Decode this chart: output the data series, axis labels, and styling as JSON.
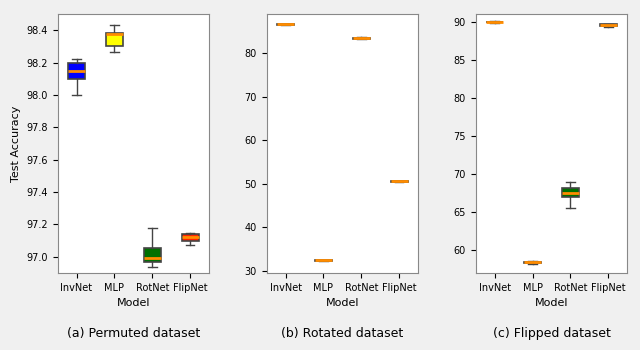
{
  "title_a": "(a) Permuted dataset",
  "title_b": "(b) Rotated dataset",
  "title_c": "(c) Flipped dataset",
  "xlabel": "Model",
  "ylabel": "Test Accuracy",
  "models": [
    "InvNet",
    "MLP",
    "RotNet",
    "FlipNet"
  ],
  "colors": [
    "#0000ff",
    "#ffff00",
    "#007000",
    "#ff2200"
  ],
  "edge_colors": [
    "#cc6600",
    "#555555",
    "#555555",
    "#cc6600"
  ],
  "permuted": {
    "InvNet": {
      "q1": 98.1,
      "median": 98.15,
      "q3": 98.2,
      "whislo": 98.0,
      "whishi": 98.22
    },
    "MLP": {
      "q1": 98.3,
      "median": 98.375,
      "q3": 98.385,
      "whislo": 98.265,
      "whishi": 98.43
    },
    "RotNet": {
      "q1": 96.97,
      "median": 96.99,
      "q3": 97.055,
      "whislo": 96.94,
      "whishi": 97.18
    },
    "FlipNet": {
      "q1": 97.1,
      "median": 97.12,
      "q3": 97.14,
      "whislo": 97.07,
      "whishi": 97.15
    }
  },
  "rotated": {
    "InvNet": {
      "q1": 86.5,
      "median": 86.6,
      "q3": 86.65,
      "whislo": 86.42,
      "whishi": 86.68
    },
    "MLP": {
      "q1": 32.3,
      "median": 32.38,
      "q3": 32.45,
      "whislo": 32.15,
      "whishi": 32.55
    },
    "RotNet": {
      "q1": 83.3,
      "median": 83.5,
      "q3": 83.6,
      "whislo": 83.15,
      "whishi": 83.75
    },
    "FlipNet": {
      "q1": 50.5,
      "median": 50.58,
      "q3": 50.62,
      "whislo": 50.45,
      "whishi": 50.65
    }
  },
  "flipped": {
    "InvNet": {
      "q1": 89.92,
      "median": 89.97,
      "q3": 90.01,
      "whislo": 89.88,
      "whishi": 90.05
    },
    "MLP": {
      "q1": 58.28,
      "median": 58.38,
      "q3": 58.46,
      "whislo": 58.18,
      "whishi": 58.55
    },
    "RotNet": {
      "q1": 67.0,
      "median": 67.5,
      "q3": 68.2,
      "whislo": 65.5,
      "whishi": 69.0
    },
    "FlipNet": {
      "q1": 89.42,
      "median": 89.55,
      "q3": 89.63,
      "whislo": 89.32,
      "whishi": 89.7
    }
  },
  "permuted_ylim": [
    96.9,
    98.5
  ],
  "rotated_ylim": [
    29.5,
    89.0
  ],
  "flipped_ylim": [
    57.0,
    91.0
  ],
  "permuted_yticks": [
    97.0,
    97.2,
    97.4,
    97.6,
    97.8,
    98.0,
    98.2,
    98.4
  ],
  "rotated_yticks": [
    30,
    40,
    50,
    60,
    70,
    80
  ],
  "flipped_yticks": [
    60,
    65,
    70,
    75,
    80,
    85,
    90
  ],
  "fig_width": 6.4,
  "fig_height": 3.5,
  "dpi": 100
}
